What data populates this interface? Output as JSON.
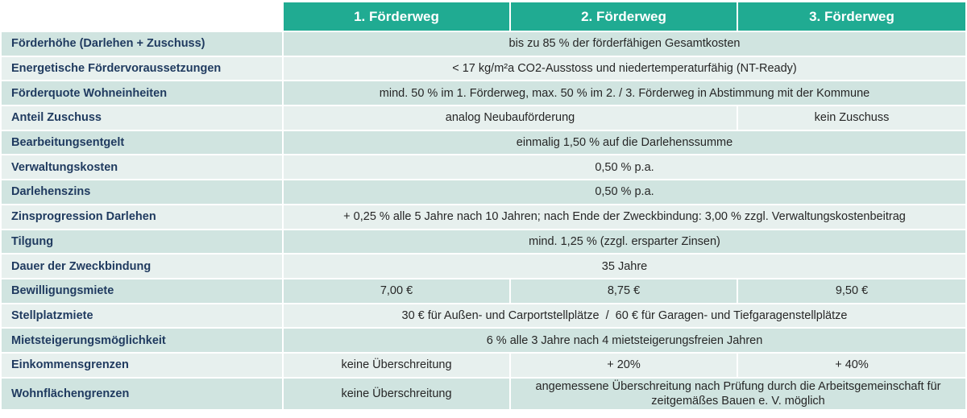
{
  "table": {
    "header": [
      "1. Förderweg",
      "2. Förderweg",
      "3. Förderweg"
    ],
    "rows": [
      {
        "label": "Förderhöhe (Darlehen + Zuschuss)",
        "cells": [
          "bis zu 85 % der förderfähigen Gesamtkosten"
        ]
      },
      {
        "label": "Energetische Fördervoraussetzungen",
        "cells": [
          "< 17 kg/m²a CO2-Ausstoss und niedertemperaturfähig (NT-Ready)"
        ]
      },
      {
        "label": "Förderquote Wohneinheiten",
        "cells": [
          "mind. 50 % im 1. Förderweg, max. 50 % im 2. / 3. Förderweg in Abstimmung mit der Kommune"
        ]
      },
      {
        "label": "Anteil Zuschuss",
        "cells": [
          "analog Neubauförderung",
          "kein Zuschuss"
        ]
      },
      {
        "label": "Bearbeitungsentgelt",
        "cells": [
          "einmalig 1,50 % auf die Darlehenssumme"
        ]
      },
      {
        "label": "Verwaltungskosten",
        "cells": [
          "0,50 % p.a."
        ]
      },
      {
        "label": "Darlehenszins",
        "cells": [
          "0,50 % p.a."
        ]
      },
      {
        "label": "Zinsprogression Darlehen",
        "cells": [
          "+ 0,25 % alle 5 Jahre nach 10 Jahren; nach Ende der Zweckbindung: 3,00 % zzgl. Verwaltungskostenbeitrag"
        ]
      },
      {
        "label": "Tilgung",
        "cells": [
          "mind. 1,25 % (zzgl. ersparter Zinsen)"
        ]
      },
      {
        "label": "Dauer der Zweckbindung",
        "cells": [
          "35 Jahre"
        ]
      },
      {
        "label": "Bewilligungsmiete",
        "cells": [
          "7,00 €",
          "8,75 €",
          "9,50 €"
        ]
      },
      {
        "label": "Stellplatzmiete",
        "cells": [
          "30 € für Außen- und Carportstellplätze  /  60 € für Garagen- und Tiefgaragenstellplätze"
        ]
      },
      {
        "label": "Mietsteigerungsmöglichkeit",
        "cells": [
          "6 % alle 3 Jahre nach 4 mietsteigerungsfreien Jahren"
        ]
      },
      {
        "label": "Einkommensgrenzen",
        "cells": [
          "keine Überschreitung",
          "+ 20%",
          "+ 40%"
        ]
      },
      {
        "label": "Wohnflächengrenzen",
        "cells": [
          "keine Überschreitung",
          "angemessene Überschreitung nach Prüfung durch die Arbeitsgemeinschaft für zeitgemäßes Bauen e. V. möglich"
        ]
      }
    ]
  }
}
